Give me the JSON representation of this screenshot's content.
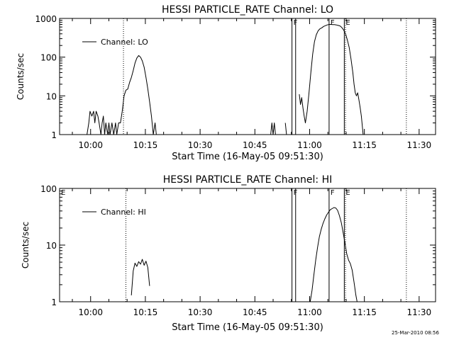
{
  "footer": {
    "timestamp": "25-Mar-2010 08:56"
  },
  "chart_data": [
    {
      "type": "line",
      "title": "HESSI PARTICLE_RATE Channel: LO",
      "xlabel": "Start Time (16-May-05 09:51:30)",
      "ylabel": "Counts/sec",
      "yscale": "log",
      "xlim": [
        "09:51:30",
        "11:34:30"
      ],
      "ylim": [
        1,
        1000
      ],
      "x_ticks": [
        "10:00",
        "10:15",
        "10:30",
        "10:45",
        "11:00",
        "11:15",
        "11:30"
      ],
      "y_ticks": [
        "1",
        "10",
        "100",
        "1000"
      ],
      "legend": {
        "label": "Channel: LO",
        "position": "top-left"
      },
      "grid": false,
      "series": [
        {
          "name": "Channel: LO",
          "segments": [
            [
              [
                "09:59:00",
                1
              ],
              [
                "09:59:30",
                2
              ],
              [
                "09:59:50",
                4
              ],
              [
                "10:00:20",
                3
              ],
              [
                "10:00:50",
                4
              ],
              [
                "10:01:10",
                2
              ],
              [
                "10:01:30",
                4
              ],
              [
                "10:02:00",
                3
              ],
              [
                "10:02:20",
                2
              ],
              [
                "10:02:50",
                1
              ],
              [
                "10:03:10",
                2
              ],
              [
                "10:03:30",
                3
              ],
              [
                "10:03:50",
                1
              ],
              [
                "10:04:10",
                2
              ],
              [
                "10:04:40",
                1
              ],
              [
                "10:05:00",
                2
              ],
              [
                "10:05:20",
                1
              ],
              [
                "10:05:50",
                2
              ],
              [
                "10:06:20",
                1
              ],
              [
                "10:06:50",
                2
              ],
              [
                "10:07:10",
                1
              ],
              [
                "10:07:40",
                2
              ],
              [
                "10:08:10",
                2
              ],
              [
                "10:08:40",
                4
              ],
              [
                "10:09:10",
                10
              ],
              [
                "10:09:40",
                14
              ],
              [
                "10:10:10",
                15
              ],
              [
                "10:10:40",
                22
              ],
              [
                "10:11:10",
                30
              ],
              [
                "10:11:40",
                45
              ],
              [
                "10:12:10",
                70
              ],
              [
                "10:12:40",
                95
              ],
              [
                "10:13:10",
                110
              ],
              [
                "10:13:40",
                100
              ],
              [
                "10:14:10",
                80
              ],
              [
                "10:14:40",
                55
              ],
              [
                "10:15:10",
                30
              ],
              [
                "10:15:40",
                15
              ],
              [
                "10:16:10",
                7
              ],
              [
                "10:16:40",
                3
              ],
              [
                "10:17:10",
                1
              ],
              [
                "10:17:40",
                2
              ],
              [
                "10:18:00",
                1
              ]
            ],
            [
              [
                "10:49:20",
                1
              ],
              [
                "10:49:40",
                2
              ],
              [
                "10:50:00",
                1
              ],
              [
                "10:50:20",
                2
              ],
              [
                "10:50:40",
                1
              ]
            ],
            [
              [
                "10:53:20",
                2
              ],
              [
                "10:53:40",
                1
              ]
            ],
            [
              [
                "10:57:10",
                11
              ],
              [
                "10:57:30",
                6
              ],
              [
                "10:57:50",
                9
              ],
              [
                "10:58:10",
                5
              ],
              [
                "10:58:30",
                3
              ],
              [
                "10:58:50",
                2
              ],
              [
                "10:59:20",
                4
              ],
              [
                "10:59:50",
                12
              ],
              [
                "11:00:20",
                40
              ],
              [
                "11:00:50",
                120
              ],
              [
                "11:01:20",
                250
              ],
              [
                "11:01:50",
                380
              ],
              [
                "11:02:20",
                480
              ],
              [
                "11:02:50",
                540
              ],
              [
                "11:03:20",
                570
              ],
              [
                "11:03:50",
                620
              ],
              [
                "11:04:20",
                650
              ],
              [
                "11:04:50",
                680
              ],
              [
                "11:05:20",
                700
              ],
              [
                "11:05:50",
                700
              ],
              [
                "11:06:20",
                690
              ],
              [
                "11:06:50",
                690
              ],
              [
                "11:07:20",
                680
              ],
              [
                "11:07:50",
                660
              ],
              [
                "11:08:20",
                640
              ],
              [
                "11:08:50",
                580
              ],
              [
                "11:09:20",
                500
              ],
              [
                "11:09:50",
                400
              ],
              [
                "11:10:20",
                280
              ],
              [
                "11:10:50",
                180
              ],
              [
                "11:11:20",
                90
              ],
              [
                "11:11:50",
                40
              ],
              [
                "11:12:10",
                20
              ],
              [
                "11:12:30",
                12
              ],
              [
                "11:12:50",
                10
              ],
              [
                "11:13:10",
                12
              ],
              [
                "11:13:30",
                8
              ],
              [
                "11:13:50",
                5
              ],
              [
                "11:14:10",
                3
              ],
              [
                "11:14:40",
                1
              ]
            ]
          ]
        }
      ],
      "vertical_lines": [
        {
          "time": "10:09:00",
          "style": "dotted"
        },
        {
          "time": "10:55:10",
          "style": "solid",
          "label": "F"
        },
        {
          "time": "10:56:10",
          "style": "solid"
        },
        {
          "time": "11:05:20",
          "style": "solid",
          "label": "F"
        },
        {
          "time": "11:09:30",
          "style": "solid",
          "label": "E"
        },
        {
          "time": "11:09:50",
          "style": "dotted"
        },
        {
          "time": "11:26:30",
          "style": "dotted"
        }
      ]
    },
    {
      "type": "line",
      "title": "HESSI PARTICLE_RATE Channel: HI",
      "xlabel": "Start Time (16-May-05 09:51:30)",
      "ylabel": "Counts/sec",
      "yscale": "log",
      "xlim": [
        "09:51:30",
        "11:34:30"
      ],
      "ylim": [
        1,
        100
      ],
      "x_ticks": [
        "10:00",
        "10:15",
        "10:30",
        "10:45",
        "11:00",
        "11:15",
        "11:30"
      ],
      "y_ticks": [
        "1",
        "10",
        "100"
      ],
      "legend": {
        "label": "Channel: HI",
        "position": "top-left"
      },
      "grid": false,
      "series": [
        {
          "name": "Channel: HI",
          "segments": [
            [
              [
                "10:11:10",
                1.3
              ],
              [
                "10:11:40",
                3.5
              ],
              [
                "10:12:10",
                4.8
              ],
              [
                "10:12:40",
                4.2
              ],
              [
                "10:13:10",
                5.1
              ],
              [
                "10:13:40",
                4.6
              ],
              [
                "10:14:10",
                5.6
              ],
              [
                "10:14:40",
                4.4
              ],
              [
                "10:15:10",
                5.2
              ],
              [
                "10:15:40",
                4.0
              ],
              [
                "10:16:10",
                1.9
              ]
            ],
            [
              [
                "11:00:10",
                1
              ],
              [
                "11:00:40",
                1.6
              ],
              [
                "11:01:10",
                3
              ],
              [
                "11:01:40",
                5.5
              ],
              [
                "11:02:10",
                9
              ],
              [
                "11:02:40",
                14
              ],
              [
                "11:03:10",
                19
              ],
              [
                "11:03:40",
                24
              ],
              [
                "11:04:10",
                29
              ],
              [
                "11:04:40",
                34
              ],
              [
                "11:05:10",
                38
              ],
              [
                "11:05:40",
                42
              ],
              [
                "11:06:10",
                44
              ],
              [
                "11:06:40",
                46
              ],
              [
                "11:07:10",
                45
              ],
              [
                "11:07:40",
                41
              ],
              [
                "11:08:10",
                33
              ],
              [
                "11:08:40",
                25
              ],
              [
                "11:09:10",
                17
              ],
              [
                "11:09:40",
                11
              ],
              [
                "11:10:10",
                7
              ],
              [
                "11:10:40",
                5.4
              ],
              [
                "11:11:10",
                4.7
              ],
              [
                "11:11:40",
                3.6
              ],
              [
                "11:12:10",
                2.2
              ],
              [
                "11:12:40",
                1.3
              ],
              [
                "11:13:00",
                1
              ]
            ]
          ]
        }
      ],
      "vertical_lines": [
        {
          "time": "09:51:30",
          "style": "solid",
          "label": "E"
        },
        {
          "time": "10:09:40",
          "style": "dotted"
        },
        {
          "time": "10:55:10",
          "style": "solid",
          "label": "F"
        },
        {
          "time": "10:56:10",
          "style": "solid"
        },
        {
          "time": "11:05:20",
          "style": "solid",
          "label": "F"
        },
        {
          "time": "11:09:30",
          "style": "solid",
          "label": "E"
        },
        {
          "time": "11:09:50",
          "style": "dotted"
        },
        {
          "time": "11:26:30",
          "style": "dotted"
        }
      ]
    }
  ]
}
